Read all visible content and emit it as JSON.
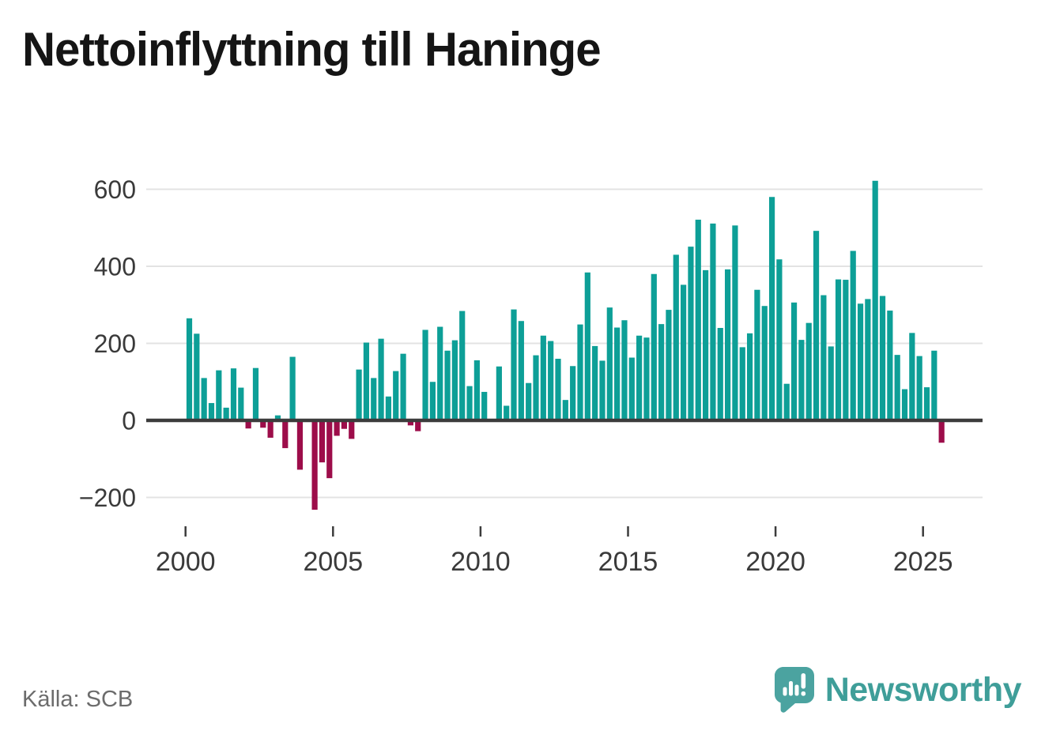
{
  "title": "Nettoinflyttning till Haninge",
  "source": {
    "label": "Källa: SCB"
  },
  "brand": {
    "name": "Newsworthy",
    "icon": "newsworthy-speech-bubble-bar-chart-icon"
  },
  "colors": {
    "positive_bar": "#0d9f97",
    "negative_bar": "#9d0d4a",
    "axis_line": "#3c3c3c",
    "gridline": "#e3e3e3",
    "tick_label": "#3a3a3a",
    "title_text": "#151515",
    "source_text": "#6c6c6c",
    "brand_teal": "#3f9e99",
    "brand_icon_teal": "#4ba3a0",
    "background": "#ffffff"
  },
  "chart_data": {
    "type": "bar",
    "title": "Nettoinflyttning till Haninge",
    "frequency": "quarterly",
    "period_start": {
      "year": 2000,
      "quarter": 1
    },
    "values": [
      265,
      225,
      110,
      45,
      130,
      33,
      135,
      85,
      -21,
      136,
      -19,
      -45,
      13,
      -72,
      165,
      -128,
      0,
      -232,
      -109,
      -150,
      -40,
      -22,
      -48,
      132,
      202,
      110,
      212,
      62,
      128,
      173,
      -13,
      -28,
      235,
      100,
      243,
      181,
      208,
      284,
      89,
      156,
      74,
      0,
      140,
      38,
      288,
      258,
      97,
      169,
      220,
      206,
      160,
      53,
      141,
      249,
      384,
      193,
      155,
      293,
      241,
      260,
      163,
      220,
      215,
      380,
      250,
      287,
      430,
      352,
      451,
      521,
      390,
      511,
      240,
      392,
      506,
      190,
      226,
      339,
      297,
      580,
      418,
      95,
      306,
      209,
      253,
      492,
      325,
      192,
      366,
      365,
      440,
      303,
      315,
      622,
      323,
      285,
      170,
      81,
      227,
      167,
      86,
      181,
      -58
    ],
    "yticks": [
      600,
      400,
      200,
      0,
      -200
    ],
    "ylim": [
      -260,
      660
    ],
    "xticks": [
      "2000",
      "2005",
      "2010",
      "2015",
      "2020",
      "2025"
    ],
    "xtick_year_step": 5,
    "grid": "horizontal",
    "legend": false,
    "xlabel": "",
    "ylabel": ""
  }
}
